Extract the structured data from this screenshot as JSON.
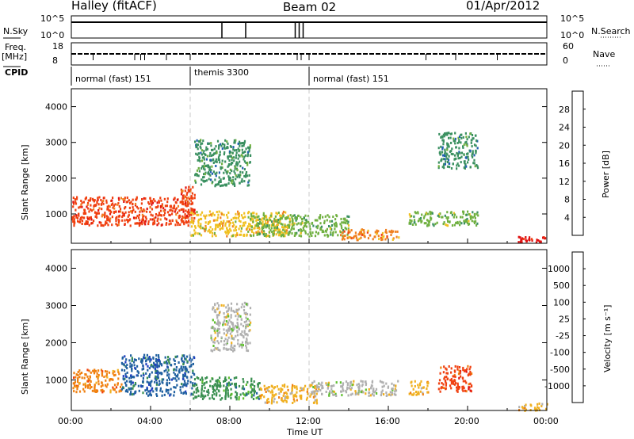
{
  "header": {
    "station": "Halley (fitACF)",
    "beam": "Beam 02",
    "date": "01/Apr/2012"
  },
  "status_panels": {
    "nsky_label": "N.Sky",
    "nsearch_label": "N.Search",
    "nsky_ticks": [
      "10^5",
      "10^0"
    ],
    "nsearch_ticks": [
      "10^5",
      "10^0"
    ],
    "freq_label": "Freq.",
    "freq_unit": "[MHz]",
    "freq_ticks": [
      "18",
      "8"
    ],
    "nave_label": "Nave",
    "nave_ticks": [
      "60",
      "0"
    ],
    "cpid_label": "CPID",
    "cpid_segments": [
      {
        "name": "normal (fast) 151",
        "start_h": 0,
        "end_h": 6
      },
      {
        "name": "themis 3300",
        "start_h": 6,
        "end_h": 12
      },
      {
        "name": "normal (fast) 151",
        "start_h": 12,
        "end_h": 24
      }
    ]
  },
  "chart_data": [
    {
      "type": "heatmap",
      "quantity": "Power",
      "ylabel": "Slant Range [km]",
      "xlabel": "Time UT",
      "x_ticks": [
        "00:00",
        "04:00",
        "08:00",
        "12:00",
        "16:00",
        "20:00",
        "00:00"
      ],
      "x_range_hours": [
        0,
        24
      ],
      "y_ticks": [
        1000,
        2000,
        3000,
        4000
      ],
      "y_range_km": [
        180,
        4500
      ],
      "colorbar_label": "Power [dB]",
      "colorbar_ticks": [
        4,
        8,
        12,
        16,
        20,
        24,
        28
      ],
      "colorbar_colors": [
        "#1030e0",
        "#2060b0",
        "#3a9060",
        "#70b040",
        "#f0c020",
        "#f08020",
        "#f04010",
        "#e01010"
      ],
      "regions": [
        {
          "t0": 0.0,
          "t1": 6.0,
          "r0": 700,
          "r1": 1500,
          "level": 26
        },
        {
          "t0": 5.5,
          "t1": 6.2,
          "r0": 800,
          "r1": 1800,
          "level": 24
        },
        {
          "t0": 6.0,
          "t1": 11.0,
          "r0": 400,
          "r1": 1100,
          "level": 18
        },
        {
          "t0": 6.2,
          "t1": 9.0,
          "r0": 1800,
          "r1": 3100,
          "level": 8
        },
        {
          "t0": 9.0,
          "t1": 14.0,
          "r0": 400,
          "r1": 1000,
          "level": 14
        },
        {
          "t0": 13.5,
          "t1": 16.5,
          "r0": 300,
          "r1": 600,
          "level": 20
        },
        {
          "t0": 17.0,
          "t1": 20.5,
          "r0": 700,
          "r1": 1100,
          "level": 14
        },
        {
          "t0": 18.5,
          "t1": 20.5,
          "r0": 2300,
          "r1": 3300,
          "level": 8
        },
        {
          "t0": 22.5,
          "t1": 24.0,
          "r0": 200,
          "r1": 400,
          "level": 28
        }
      ]
    },
    {
      "type": "heatmap",
      "quantity": "Velocity",
      "ylabel": "Slant Range [km]",
      "xlabel": "Time UT",
      "x_ticks": [
        "00:00",
        "04:00",
        "08:00",
        "12:00",
        "16:00",
        "20:00",
        "00:00"
      ],
      "x_range_hours": [
        0,
        24
      ],
      "y_ticks": [
        1000,
        2000,
        3000,
        4000
      ],
      "y_range_km": [
        180,
        4500
      ],
      "colorbar_label": "Velocity [m s⁻¹]",
      "colorbar_ticks": [
        1000,
        500,
        100,
        25,
        -25,
        -100,
        -500,
        -1000
      ],
      "colorbar_colors": [
        "#2040c0",
        "#2060a0",
        "#3a9050",
        "#60c030",
        "#b0b0b0",
        "#f0b020",
        "#f08010",
        "#f04010",
        "#e01010"
      ],
      "regions": [
        {
          "t0": 0.0,
          "t1": 2.5,
          "r0": 700,
          "r1": 1300,
          "level": -500
        },
        {
          "t0": 2.5,
          "t1": 6.2,
          "r0": 600,
          "r1": 1700,
          "level": 500
        },
        {
          "t0": 6.0,
          "t1": 9.5,
          "r0": 500,
          "r1": 1100,
          "level": 100
        },
        {
          "t0": 7.0,
          "t1": 9.0,
          "r0": 1800,
          "r1": 3100,
          "level": 0
        },
        {
          "t0": 9.5,
          "t1": 12.5,
          "r0": 400,
          "r1": 900,
          "level": -100
        },
        {
          "t0": 12.0,
          "t1": 16.5,
          "r0": 600,
          "r1": 1000,
          "level": 0
        },
        {
          "t0": 17.0,
          "t1": 18.0,
          "r0": 600,
          "r1": 1000,
          "level": -100
        },
        {
          "t0": 18.5,
          "t1": 20.2,
          "r0": 700,
          "r1": 1400,
          "level": -1000
        },
        {
          "t0": 22.5,
          "t1": 24.0,
          "r0": 200,
          "r1": 400,
          "level": -100
        }
      ]
    }
  ]
}
